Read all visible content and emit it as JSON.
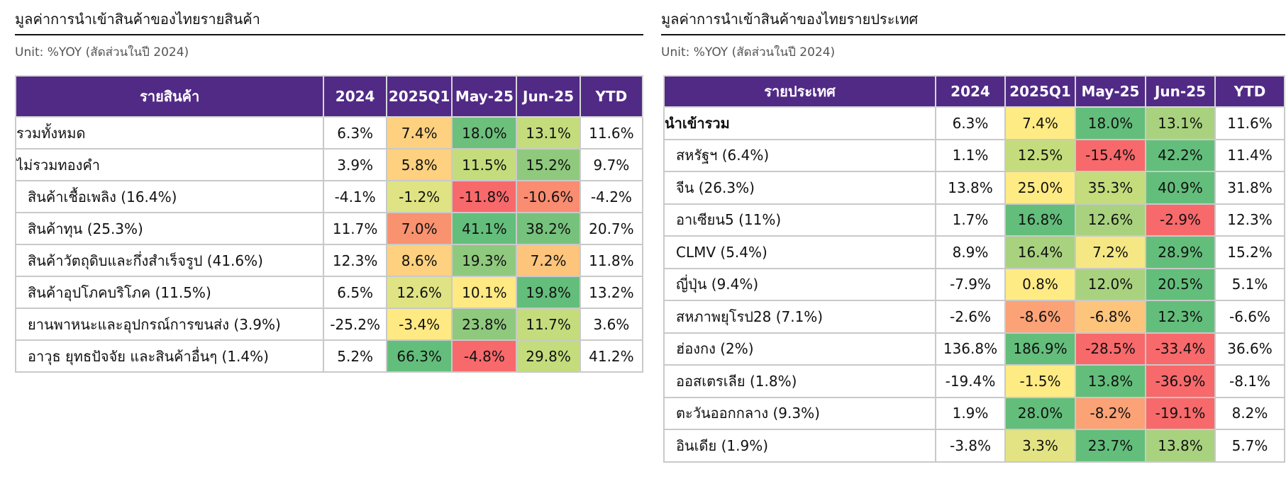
{
  "left": {
    "title": "มูลค่าการนำเข้าสินค้าของไทยรายสินค้า",
    "unit": "Unit: %YOY (สัดส่วนในปี 2024)",
    "header": [
      "รายสินค้า",
      "2024",
      "2025Q1",
      "May-25",
      "Jun-25",
      "YTD"
    ],
    "rows": [
      [
        "รวมทั้งหมด",
        "6.3%",
        "7.4%",
        "18.0%",
        "13.1%",
        "11.6%"
      ],
      [
        "ไม่รวมทองคำ",
        "3.9%",
        "5.8%",
        "11.5%",
        "15.2%",
        "9.7%"
      ],
      [
        "สินค้าเชื้อเพลิง (16.4%)",
        "-4.1%",
        "-1.2%",
        "-11.8%",
        "-10.6%",
        "-4.2%"
      ],
      [
        "สินค้าทุน (25.3%)",
        "11.7%",
        "7.0%",
        "41.1%",
        "38.2%",
        "20.7%"
      ],
      [
        "สินค้าวัตถุดิบและกึ่งสำเร็จรูป (41.6%)",
        "12.3%",
        "8.6%",
        "19.3%",
        "7.2%",
        "11.8%"
      ],
      [
        "สินค้าอุปโภคบริโภค (11.5%)",
        "6.5%",
        "12.6%",
        "10.1%",
        "19.8%",
        "13.2%"
      ],
      [
        "ยานพาหนะและอุปกรณ์การขนส่ง (3.9%)",
        "-25.2%",
        "-3.4%",
        "23.8%",
        "11.7%",
        "3.6%"
      ],
      [
        "อาวุธ ยุทธปัจจัย และสินค้าอื่นๆ (1.4%)",
        "5.2%",
        "66.3%",
        "-4.8%",
        "29.8%",
        "41.2%"
      ]
    ],
    "cell_colors": [
      [
        "#fdd17f",
        "#6dbf7c",
        "#c4dc7c"
      ],
      [
        "#fdd17f",
        "#c4dc7c",
        "#8fc97d"
      ],
      [
        "#dfe383",
        "#f8696b",
        "#f98c71"
      ],
      [
        "#f8926f",
        "#63be7b",
        "#76c27c"
      ],
      [
        "#fdd17f",
        "#8fc97d",
        "#fdc47c"
      ],
      [
        "#dfe383",
        "#fee983",
        "#63be7b"
      ],
      [
        "#fee983",
        "#8fc97d",
        "#c4dc7c"
      ],
      [
        "#63be7b",
        "#f8696b",
        "#c4dc7c"
      ]
    ]
  },
  "right": {
    "title": "มูลค่าการนำเข้าสินค้าของไทยรายประเทศ",
    "unit": "Unit: %YOY (สัดส่วนในปี 2024)",
    "header": [
      "รายประเทศ",
      "2024",
      "2025Q1",
      "May-25",
      "Jun-25",
      "YTD"
    ],
    "rows": [
      [
        "นำเข้ารวม",
        "6.3%",
        "7.4%",
        "18.0%",
        "13.1%",
        "11.6%"
      ],
      [
        "สหรัฐฯ (6.4%)",
        "1.1%",
        "12.5%",
        "-15.4%",
        "42.2%",
        "11.4%"
      ],
      [
        "จีน (26.3%)",
        "13.8%",
        "25.0%",
        "35.3%",
        "40.9%",
        "31.8%"
      ],
      [
        "อาเซียน5 (11%)",
        "1.7%",
        "16.8%",
        "12.6%",
        "-2.9%",
        "12.3%"
      ],
      [
        "CLMV (5.4%)",
        "8.9%",
        "16.4%",
        "7.2%",
        "28.9%",
        "15.2%"
      ],
      [
        "ญี่ปุ่น (9.4%)",
        "-7.9%",
        "0.8%",
        "12.0%",
        "20.5%",
        "5.1%"
      ],
      [
        "สหภาพยุโรป28 (7.1%)",
        "-2.6%",
        "-8.6%",
        "-6.8%",
        "12.3%",
        "-6.6%"
      ],
      [
        "ฮ่องกง (2%)",
        "136.8%",
        "186.9%",
        "-28.5%",
        "-33.4%",
        "36.6%"
      ],
      [
        "ออสเตรเลีย (1.8%)",
        "-19.4%",
        "-1.5%",
        "13.8%",
        "-36.9%",
        "-8.1%"
      ],
      [
        "ตะวันออกกลาง (9.3%)",
        "1.9%",
        "28.0%",
        "-8.2%",
        "-19.1%",
        "8.2%"
      ],
      [
        "อินเดีย (1.9%)",
        "-3.8%",
        "3.3%",
        "23.7%",
        "13.8%",
        "5.7%"
      ]
    ],
    "cell_colors": [
      [
        "#ffeb84",
        "#63be7b",
        "#a9d27f"
      ],
      [
        "#c4dc7c",
        "#f8696b",
        "#63be7b"
      ],
      [
        "#ffeb84",
        "#c4dc7c",
        "#63be7b"
      ],
      [
        "#63be7b",
        "#a9d27f",
        "#f8696b"
      ],
      [
        "#a9d27f",
        "#f5e884",
        "#63be7b"
      ],
      [
        "#ffeb84",
        "#a9d27f",
        "#63be7b"
      ],
      [
        "#fba276",
        "#fdc47c",
        "#63be7b"
      ],
      [
        "#63be7b",
        "#f8696b",
        "#f8696b"
      ],
      [
        "#ffeb84",
        "#63be7b",
        "#f8696b"
      ],
      [
        "#63be7b",
        "#fba276",
        "#f8696b"
      ],
      [
        "#e3e383",
        "#63be7b",
        "#a9d27f"
      ]
    ]
  }
}
